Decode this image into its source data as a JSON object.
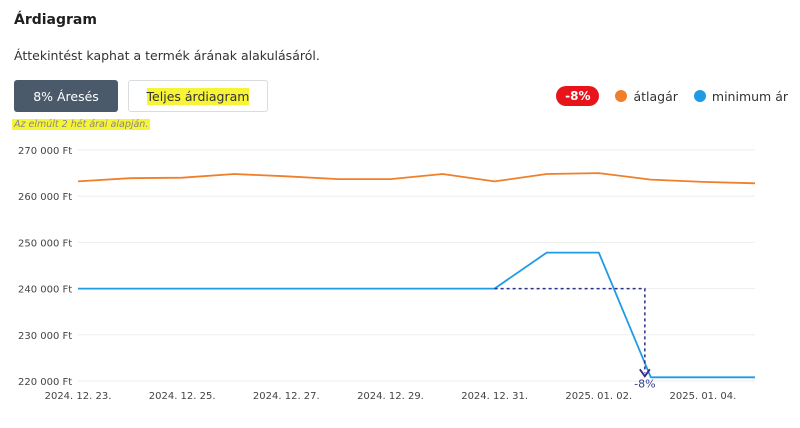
{
  "header": {
    "title": "Árdiagram",
    "subtitle": "Áttekintést kaphat a termék árának alakulásáról."
  },
  "buttons": {
    "discount_label": "8% Áresés",
    "full_chart_label": "Teljes árdiagram"
  },
  "note": "Az elmúlt 2 hét árai alapján.",
  "legend": {
    "badge": "-8%",
    "average_label": "átlagár",
    "minimum_label": "minimum ár"
  },
  "colors": {
    "average": "#f07f2a",
    "minimum": "#1f9be6",
    "drop": "#2b2f87",
    "badge": "#e8141b"
  },
  "chart_data": {
    "type": "line",
    "x": [
      "2024. 12. 23.",
      "2024. 12. 24.",
      "2024. 12. 25.",
      "2024. 12. 26.",
      "2024. 12. 27.",
      "2024. 12. 28.",
      "2024. 12. 29.",
      "2024. 12. 30.",
      "2024. 12. 31.",
      "2025. 01. 01.",
      "2025. 01. 02.",
      "2025. 01. 03.",
      "2025. 01. 04.",
      "2025. 01. 05."
    ],
    "x_tick_labels": [
      "2024. 12. 23.",
      "2024. 12. 25.",
      "2024. 12. 27.",
      "2024. 12. 29.",
      "2024. 12. 31.",
      "2025. 01. 02.",
      "2025. 01. 04."
    ],
    "series": [
      {
        "name": "átlagár",
        "values": [
          263200,
          263900,
          264000,
          264800,
          264300,
          263700,
          263700,
          264800,
          263200,
          264800,
          265000,
          263600,
          263100,
          262800
        ]
      },
      {
        "name": "minimum ár",
        "values": [
          240000,
          240000,
          240000,
          240000,
          240000,
          240000,
          240000,
          240000,
          240000,
          247800,
          247800,
          220800,
          220800,
          220800
        ]
      }
    ],
    "y_ticks": [
      "220 000 Ft",
      "230 000 Ft",
      "240 000 Ft",
      "250 000 Ft",
      "260 000 Ft",
      "270 000 Ft"
    ],
    "y_tick_values": [
      220000,
      230000,
      240000,
      250000,
      260000,
      270000
    ],
    "ylim": [
      220000,
      270000
    ],
    "drop_annotation": {
      "from_value": 240000,
      "to_value": 220800,
      "from_x": "2024. 12. 31.",
      "to_x": "2025. 01. 03.",
      "label": "-8%"
    },
    "grid": true
  }
}
